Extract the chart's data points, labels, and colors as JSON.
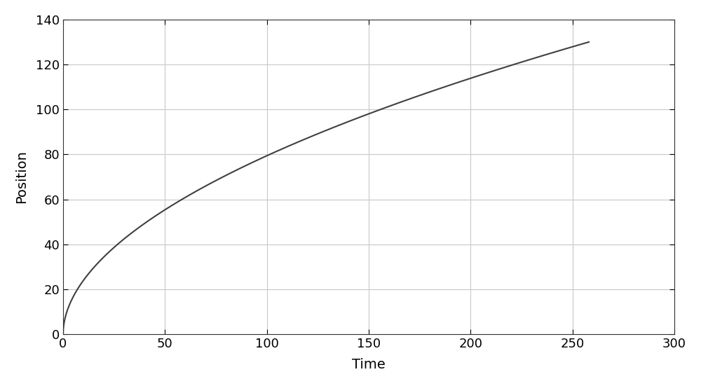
{
  "xlabel": "Time",
  "ylabel": "Position",
  "xlim": [
    0,
    300
  ],
  "ylim": [
    0,
    140
  ],
  "xticks": [
    0,
    50,
    100,
    150,
    200,
    250,
    300
  ],
  "yticks": [
    0,
    20,
    40,
    60,
    80,
    100,
    120,
    140
  ],
  "line_color": "#404040",
  "line_width": 1.5,
  "background_color": "#ffffff",
  "grid_color": "#c8c8c8",
  "t_end": 258,
  "y_final": 130,
  "power_exp": 0.52,
  "font_size": 14,
  "tick_font_size": 13
}
